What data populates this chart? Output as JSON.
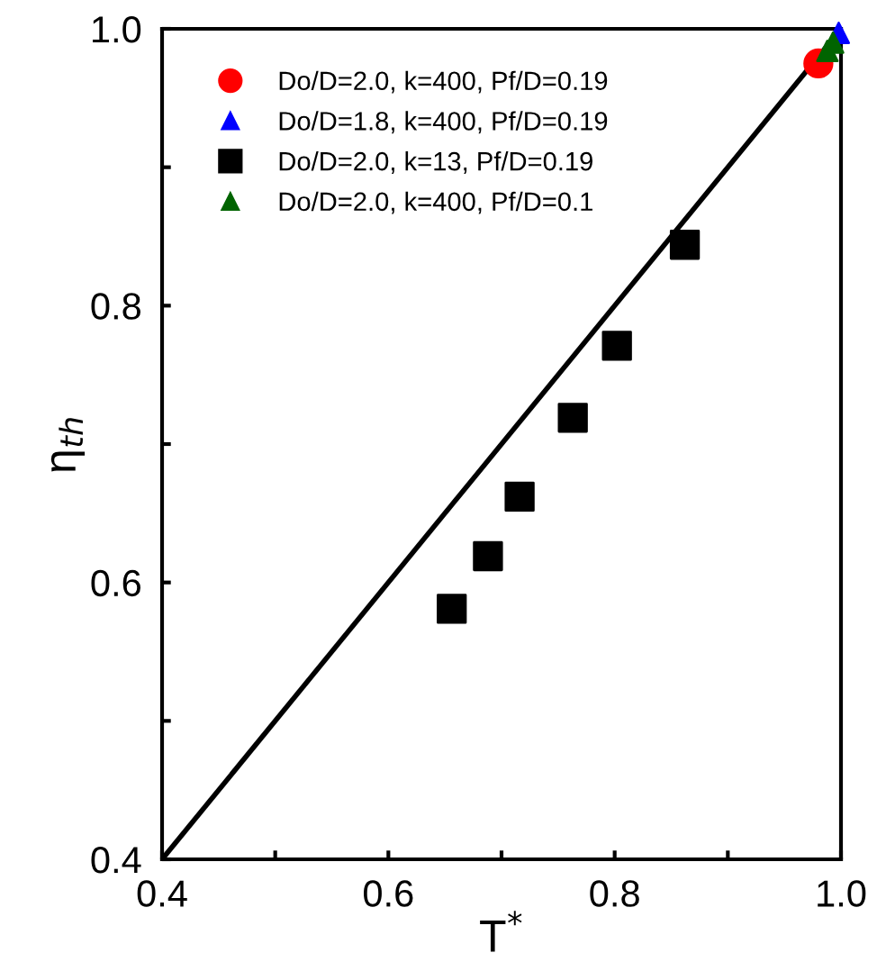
{
  "chart_data": {
    "type": "scatter",
    "xlabel": "T$^{*}$",
    "ylabel": "η$_{th}$",
    "xlim": [
      0.4,
      1.0
    ],
    "ylim": [
      0.4,
      1.0
    ],
    "xticks": [
      0.4,
      {
        "value": 0.5,
        "label": null
      },
      0.6,
      {
        "value": 0.7,
        "label": null
      },
      0.8,
      {
        "value": 0.9,
        "label": null
      },
      {
        "value": 1.0,
        "label": "1.0"
      }
    ],
    "yticks": [
      0.4,
      {
        "value": 0.5,
        "label": null
      },
      0.6,
      {
        "value": 0.7,
        "label": null
      },
      0.8,
      {
        "value": 0.9,
        "label": null
      },
      {
        "value": 1.0,
        "label": "1.0"
      }
    ],
    "legend": "top left",
    "grid": false,
    "series": [
      {
        "name": "Do/D=2.0, k=400, Pf/D=0.19",
        "color": "#ff0000",
        "marker": "circle",
        "x": [
          0.98
        ],
        "values": [
          0.975
        ]
      },
      {
        "name": "Do/D=1.8, k=400, Pf/D=0.19",
        "color": "#0000ff",
        "marker": "triangle",
        "x": [
          0.998
        ],
        "values": [
          0.997
        ]
      },
      {
        "name": "Do/D=2.0, k=13, Pf/D=0.19",
        "color": "#000000",
        "marker": "square",
        "x": [
          0.656,
          0.688,
          0.716,
          0.763,
          0.802,
          0.862
        ],
        "values": [
          0.581,
          0.619,
          0.662,
          0.719,
          0.771,
          0.844
        ]
      },
      {
        "name": "Do/D=2.0, k=400, Pf/D=0.1",
        "color": "#006400",
        "marker": "triangle",
        "x": [
          0.988,
          0.993
        ],
        "values": [
          0.984,
          0.99
        ]
      },
      {
        "type": "line",
        "color": "#000000",
        "marker": "none",
        "line_style": "solid",
        "x": [
          0.4,
          1.0
        ],
        "values": [
          0.4,
          1.0
        ]
      }
    ]
  }
}
